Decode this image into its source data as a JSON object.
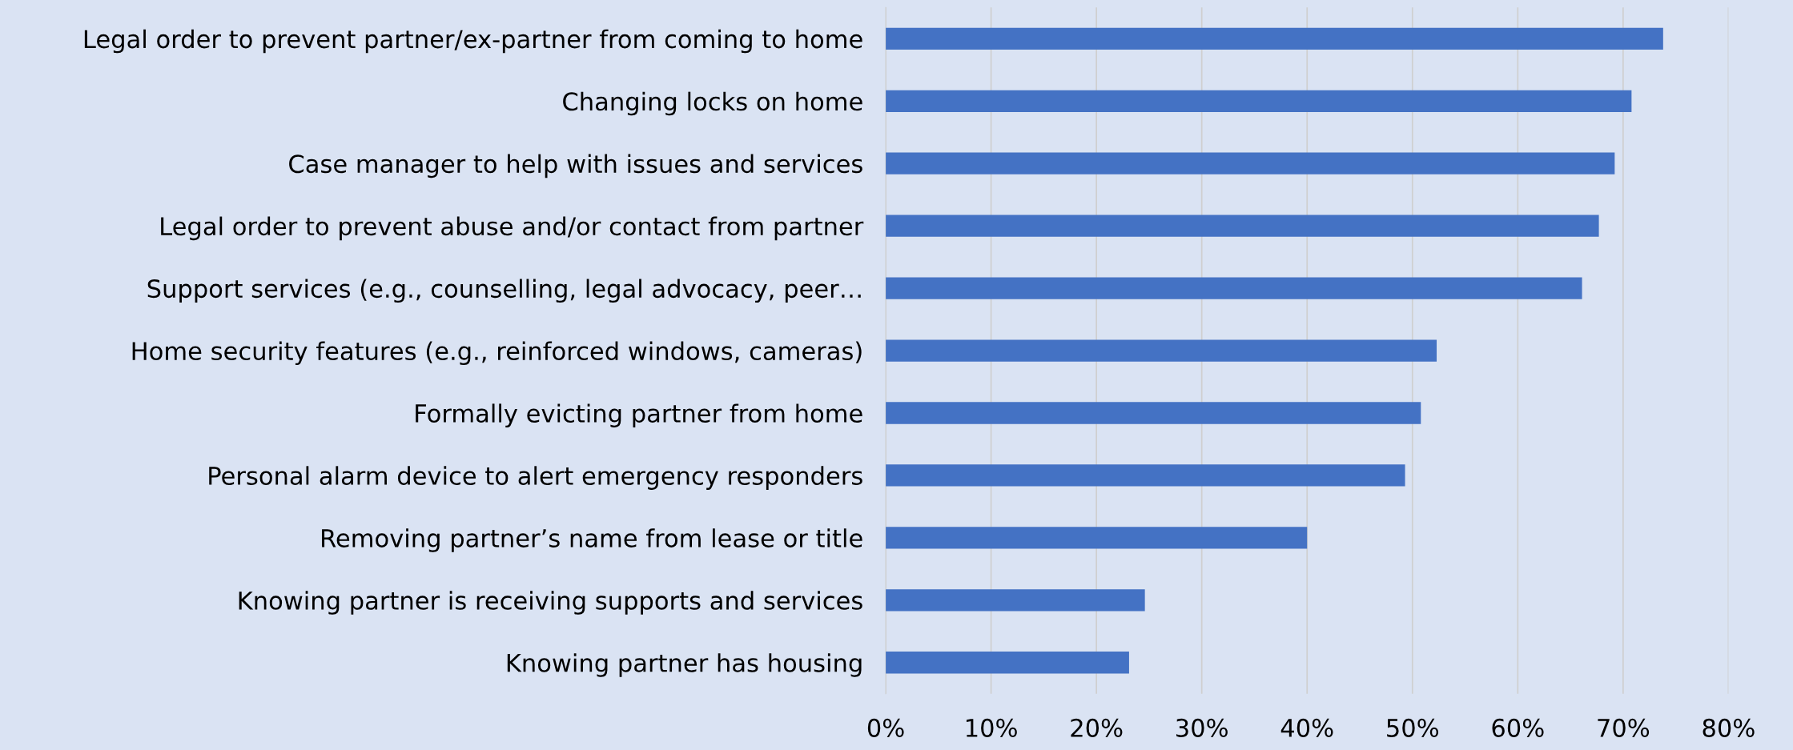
{
  "chart_data": {
    "type": "bar",
    "orientation": "horizontal",
    "categories": [
      "Legal order to prevent partner/ex-partner from coming to home",
      "Changing locks on home",
      "Case manager to help with issues and services",
      "Legal order to prevent abuse and/or contact from partner",
      "Support services (e.g., counselling, legal advocacy, peer…",
      "Home security features (e.g., reinforced windows, cameras)",
      "Formally evicting partner from home",
      "Personal alarm device to alert emergency responders",
      "Removing partner’s name from lease or title",
      "Knowing partner is receiving supports and services",
      "Knowing partner has housing"
    ],
    "values": [
      0.738,
      0.708,
      0.692,
      0.677,
      0.661,
      0.523,
      0.508,
      0.493,
      0.4,
      0.246,
      0.231
    ],
    "color": "#4472c4",
    "xlim": [
      0,
      0.8
    ],
    "xticks": [
      {
        "value": 0,
        "label": "0%"
      },
      {
        "value": 0.1,
        "label": "10%"
      },
      {
        "value": 0.2,
        "label": "20%"
      },
      {
        "value": 0.3,
        "label": "30%"
      },
      {
        "value": 0.4,
        "label": "40%"
      },
      {
        "value": 0.5,
        "label": "50%"
      },
      {
        "value": 0.6,
        "label": "60%"
      },
      {
        "value": 0.7,
        "label": "70%"
      },
      {
        "value": 0.8,
        "label": "80%"
      }
    ],
    "grid": "x"
  }
}
